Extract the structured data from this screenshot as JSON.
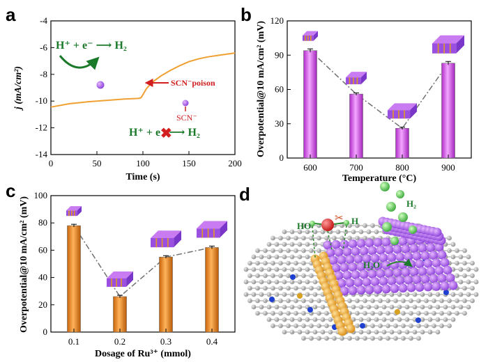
{
  "colors": {
    "purple": "#c03ad8",
    "purple_light": "#ef9cff",
    "orange": "#e27a0e",
    "orange_light": "#ffb35a",
    "line_a": "#f0a030",
    "annotation_green": "#1a7a2a",
    "annotation_red": "#d21e1e",
    "trend_line": "#707070"
  },
  "panels": {
    "a": {
      "letter": "a"
    },
    "b": {
      "letter": "b"
    },
    "c": {
      "letter": "c"
    },
    "d": {
      "letter": "d"
    }
  },
  "chart_data": [
    {
      "panel": "a",
      "type": "line",
      "xlabel": "Time (s)",
      "ylabel": "j (mA/cm²)",
      "xlim": [
        0,
        200
      ],
      "ylim": [
        -14,
        -4
      ],
      "xticks": [
        "0",
        "50",
        "100",
        "150",
        "200"
      ],
      "yticks": [
        "-14",
        "-12",
        "-10",
        "-8",
        "-6",
        "-4"
      ],
      "series": [
        {
          "x": [
            0,
            20,
            40,
            60,
            80,
            95,
            98,
            101,
            104,
            110,
            120,
            130,
            140,
            150,
            160,
            170,
            180,
            190,
            200
          ],
          "values": [
            -10.45,
            -10.2,
            -10.05,
            -9.95,
            -9.85,
            -9.8,
            -9.75,
            -9.4,
            -9.05,
            -8.6,
            -8.1,
            -7.7,
            -7.35,
            -7.05,
            -6.85,
            -6.7,
            -6.6,
            -6.5,
            -6.4
          ]
        }
      ],
      "annotations": {
        "reaction_top": "H⁺ + e⁻ ⟶ H₂",
        "poison_label": "SCN⁻poison",
        "scn_label": "SCN⁻",
        "reaction_bottom": "H⁺ + e⁻ ⟶ H₂"
      }
    },
    {
      "panel": "b",
      "type": "bar",
      "xlabel": "Temperature (°C)",
      "ylabel": "Overpotential@10 mA/cm² (mV)",
      "categories": [
        "600",
        "700",
        "800",
        "900"
      ],
      "values": [
        94,
        56,
        26,
        83
      ],
      "errors": [
        1.5,
        1,
        1,
        1.5
      ],
      "ylim": [
        0,
        120
      ],
      "yticks": [
        "0",
        "30",
        "60",
        "90",
        "120"
      ]
    },
    {
      "panel": "c",
      "type": "bar",
      "xlabel": "Dosage of Ru³⁺ (mmol)",
      "ylabel": "Overpotential@10 mA/cm² (mV)",
      "categories": [
        "0.1",
        "0.2",
        "0.3",
        "0.4"
      ],
      "values": [
        78,
        26,
        55,
        62
      ],
      "errors": [
        1,
        1,
        1,
        1
      ],
      "ylim": [
        0,
        100
      ],
      "yticks": [
        "0",
        "20",
        "40",
        "60",
        "80",
        "100"
      ]
    }
  ],
  "illustration_d": {
    "labels": {
      "ho": "HO",
      "h": "H",
      "h2": "H₂",
      "h2o": "H₂O"
    }
  }
}
